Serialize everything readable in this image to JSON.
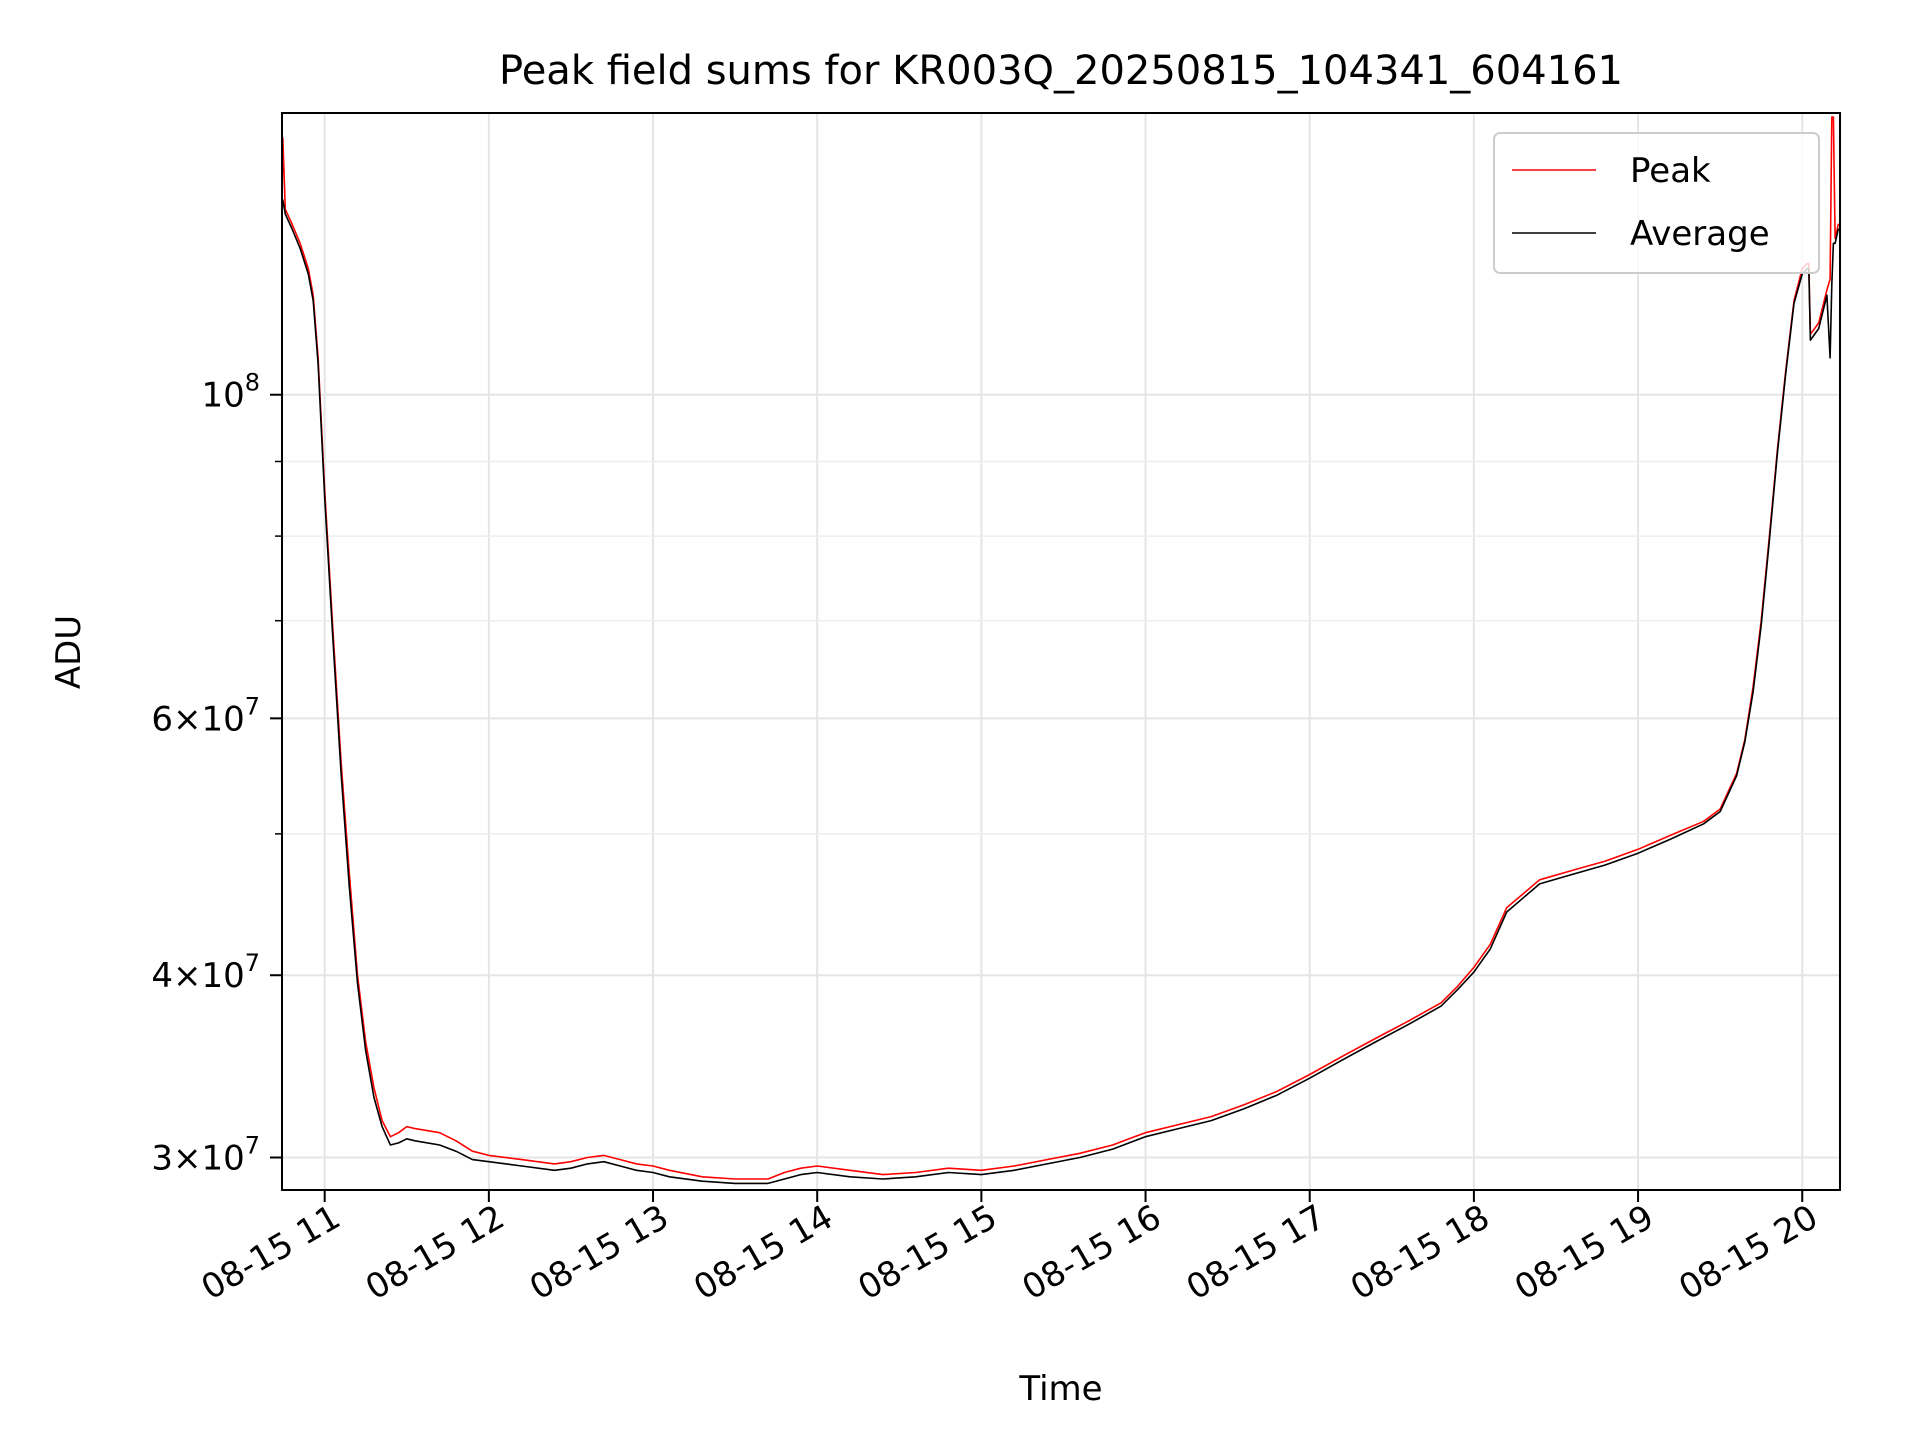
{
  "chart_data": {
    "type": "line",
    "title": "Peak field sums for KR003Q_20250815_104341_604161",
    "xlabel": "Time",
    "ylabel": "ADU",
    "yscale": "log",
    "grid": true,
    "legend_position": "upper right",
    "x_unit": "hour of 08-15",
    "xlim": [
      10.74,
      20.23
    ],
    "ylim": [
      28500000.0,
      156000000.0
    ],
    "x_ticks": [
      {
        "value": 11,
        "label": "08-15 11"
      },
      {
        "value": 12,
        "label": "08-15 12"
      },
      {
        "value": 13,
        "label": "08-15 13"
      },
      {
        "value": 14,
        "label": "08-15 14"
      },
      {
        "value": 15,
        "label": "08-15 15"
      },
      {
        "value": 16,
        "label": "08-15 16"
      },
      {
        "value": 17,
        "label": "08-15 17"
      },
      {
        "value": 18,
        "label": "08-15 18"
      },
      {
        "value": 19,
        "label": "08-15 19"
      },
      {
        "value": 20,
        "label": "08-15 20"
      }
    ],
    "y_ticks": [
      {
        "value": 30000000,
        "base": "3×10",
        "exp": "7"
      },
      {
        "value": 40000000,
        "base": "4×10",
        "exp": "7"
      },
      {
        "value": 60000000,
        "base": "6×10",
        "exp": "7"
      },
      {
        "value": 100000000,
        "base": "10",
        "exp": "8"
      }
    ],
    "y_minor_ticks": [
      50000000,
      70000000,
      80000000,
      90000000
    ],
    "series": [
      {
        "name": "Peak",
        "color": "#ff0000",
        "x": [
          10.74,
          10.745,
          10.76,
          10.8,
          10.85,
          10.88,
          10.9,
          10.93,
          10.96,
          11.0,
          11.05,
          11.1,
          11.15,
          11.2,
          11.25,
          11.3,
          11.35,
          11.4,
          11.45,
          11.5,
          11.55,
          11.7,
          11.8,
          11.9,
          12.0,
          12.2,
          12.4,
          12.5,
          12.6,
          12.7,
          12.8,
          12.9,
          13.0,
          13.1,
          13.3,
          13.5,
          13.7,
          13.8,
          13.9,
          14.0,
          14.2,
          14.4,
          14.6,
          14.8,
          15.0,
          15.2,
          15.4,
          15.6,
          15.8,
          15.9,
          16.0,
          16.2,
          16.4,
          16.6,
          16.8,
          17.0,
          17.2,
          17.4,
          17.6,
          17.8,
          17.9,
          18.0,
          18.1,
          18.2,
          18.4,
          18.6,
          18.8,
          19.0,
          19.2,
          19.4,
          19.5,
          19.6,
          19.65,
          19.7,
          19.75,
          19.8,
          19.85,
          19.9,
          19.95,
          20.0,
          20.03,
          20.04,
          20.05,
          20.1,
          20.15,
          20.17,
          20.18,
          20.19,
          20.2,
          20.22
        ],
        "y": [
          135000000,
          150000000,
          134000000,
          131000000,
          127000000,
          124000000,
          122000000,
          117000000,
          106000000,
          86000000,
          69000000,
          56000000,
          47000000,
          40000000,
          36000000,
          33500000,
          31800000,
          31000000,
          31200000,
          31500000,
          31400000,
          31200000,
          30800000,
          30300000,
          30100000,
          29900000,
          29700000,
          29800000,
          30000000,
          30100000,
          29900000,
          29700000,
          29600000,
          29400000,
          29100000,
          29000000,
          29000000,
          29300000,
          29500000,
          29600000,
          29400000,
          29200000,
          29300000,
          29500000,
          29400000,
          29600000,
          29900000,
          30200000,
          30600000,
          30900000,
          31200000,
          31600000,
          32000000,
          32600000,
          33300000,
          34200000,
          35200000,
          36200000,
          37200000,
          38300000,
          39300000,
          40500000,
          42000000,
          44500000,
          46500000,
          47200000,
          47900000,
          48800000,
          49900000,
          51000000,
          52000000,
          55000000,
          58000000,
          63000000,
          70000000,
          80000000,
          92000000,
          104000000,
          116000000,
          122000000,
          123000000,
          123000000,
          110000000,
          112000000,
          118000000,
          120000000,
          155000000,
          155000000,
          128000000,
          131000000
        ]
      },
      {
        "name": "Average",
        "color": "#000000",
        "x": [
          10.74,
          10.745,
          10.76,
          10.8,
          10.85,
          10.88,
          10.9,
          10.93,
          10.96,
          11.0,
          11.05,
          11.1,
          11.15,
          11.2,
          11.25,
          11.3,
          11.35,
          11.4,
          11.45,
          11.5,
          11.55,
          11.7,
          11.8,
          11.9,
          12.0,
          12.2,
          12.4,
          12.5,
          12.6,
          12.7,
          12.8,
          12.9,
          13.0,
          13.1,
          13.3,
          13.5,
          13.7,
          13.8,
          13.9,
          14.0,
          14.2,
          14.4,
          14.6,
          14.8,
          15.0,
          15.2,
          15.4,
          15.6,
          15.8,
          15.9,
          16.0,
          16.2,
          16.4,
          16.6,
          16.8,
          17.0,
          17.2,
          17.4,
          17.6,
          17.8,
          17.9,
          18.0,
          18.1,
          18.2,
          18.4,
          18.6,
          18.8,
          19.0,
          19.2,
          19.4,
          19.5,
          19.6,
          19.65,
          19.7,
          19.75,
          19.8,
          19.85,
          19.9,
          19.95,
          20.0,
          20.03,
          20.04,
          20.05,
          20.1,
          20.15,
          20.17,
          20.18,
          20.19,
          20.2,
          20.22
        ],
        "y": [
          134000000,
          136000000,
          133000000,
          130000000,
          126000000,
          123000000,
          121000000,
          116000000,
          105000000,
          85000000,
          68000000,
          55000000,
          46000000,
          39500000,
          35500000,
          33000000,
          31500000,
          30600000,
          30700000,
          30900000,
          30800000,
          30600000,
          30300000,
          29900000,
          29800000,
          29600000,
          29400000,
          29500000,
          29700000,
          29800000,
          29600000,
          29400000,
          29300000,
          29100000,
          28900000,
          28800000,
          28800000,
          29000000,
          29200000,
          29300000,
          29100000,
          29000000,
          29100000,
          29300000,
          29200000,
          29400000,
          29700000,
          30000000,
          30400000,
          30700000,
          31000000,
          31400000,
          31800000,
          32400000,
          33100000,
          34000000,
          35000000,
          36000000,
          37000000,
          38100000,
          39100000,
          40200000,
          41700000,
          44200000,
          46200000,
          46900000,
          47600000,
          48500000,
          49600000,
          50800000,
          51800000,
          54800000,
          57800000,
          62500000,
          69500000,
          79500000,
          91500000,
          103500000,
          115500000,
          121000000,
          122000000,
          122000000,
          109000000,
          111000000,
          117000000,
          106000000,
          119000000,
          127000000,
          127000000,
          130000000
        ]
      }
    ]
  }
}
